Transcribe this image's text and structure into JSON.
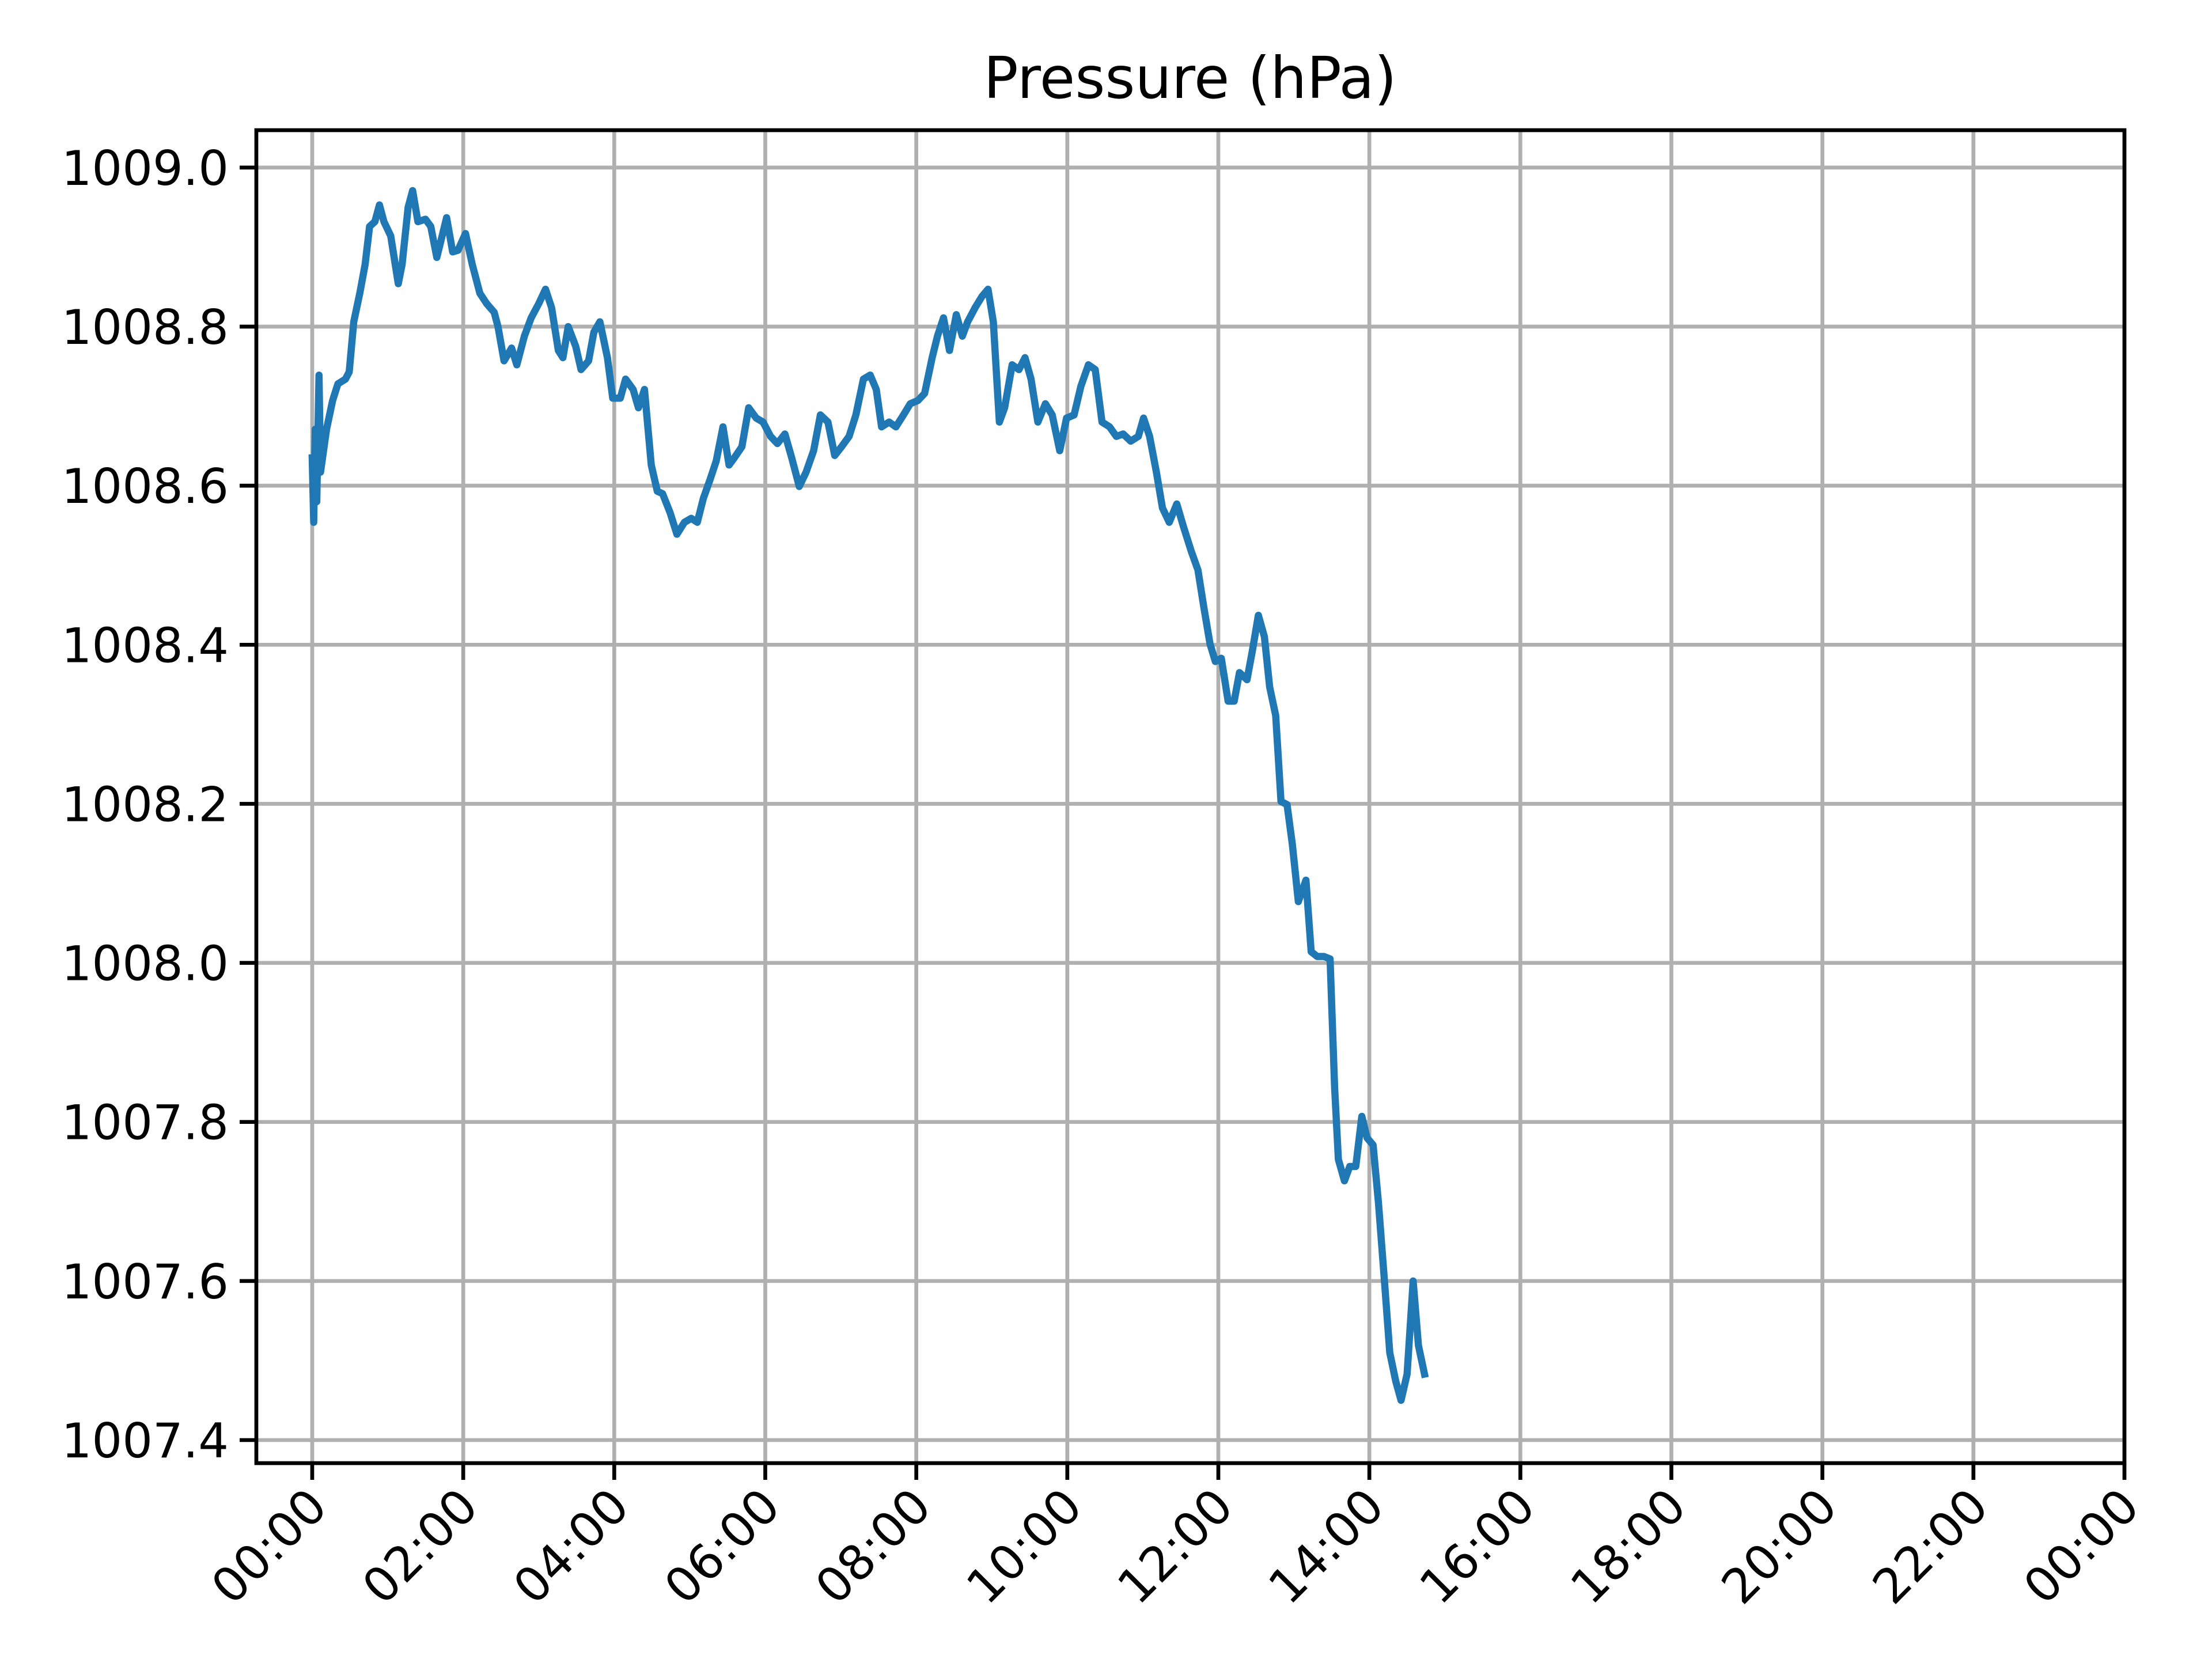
{
  "chart_data": {
    "type": "line",
    "title": "Pressure (hPa)",
    "x": [
      0,
      0.02,
      0.04,
      0.06,
      0.09,
      0.11,
      0.19,
      0.27,
      0.34,
      0.44,
      0.49,
      0.55,
      0.63,
      0.7,
      0.76,
      0.83,
      0.89,
      0.95,
      1.04,
      1.14,
      1.19,
      1.27,
      1.33,
      1.4,
      1.5,
      1.57,
      1.65,
      1.72,
      1.78,
      1.86,
      1.93,
      2.03,
      2.12,
      2.22,
      2.31,
      2.41,
      2.46,
      2.54,
      2.64,
      2.71,
      2.81,
      2.9,
      3.0,
      3.09,
      3.17,
      3.26,
      3.32,
      3.39,
      3.49,
      3.56,
      3.66,
      3.73,
      3.81,
      3.91,
      3.98,
      4.08,
      4.15,
      4.25,
      4.32,
      4.4,
      4.49,
      4.57,
      4.64,
      4.74,
      4.83,
      4.93,
      5.02,
      5.1,
      5.18,
      5.27,
      5.35,
      5.44,
      5.52,
      5.59,
      5.69,
      5.78,
      5.88,
      5.97,
      6.07,
      6.16,
      6.26,
      6.35,
      6.45,
      6.54,
      6.64,
      6.73,
      6.83,
      6.92,
      7.01,
      7.11,
      7.2,
      7.3,
      7.39,
      7.47,
      7.54,
      7.64,
      7.73,
      7.83,
      7.92,
      8.02,
      8.11,
      8.21,
      8.28,
      8.36,
      8.44,
      8.53,
      8.61,
      8.68,
      8.78,
      8.87,
      8.95,
      9.02,
      9.1,
      9.17,
      9.27,
      9.36,
      9.44,
      9.52,
      9.61,
      9.71,
      9.8,
      9.9,
      9.99,
      10.09,
      10.18,
      10.28,
      10.37,
      10.46,
      10.56,
      10.65,
      10.74,
      10.84,
      10.94,
      11.01,
      11.09,
      11.18,
      11.26,
      11.35,
      11.45,
      11.54,
      11.64,
      11.73,
      11.81,
      11.89,
      11.96,
      12.04,
      12.13,
      12.21,
      12.28,
      12.38,
      12.45,
      12.53,
      12.61,
      12.68,
      12.76,
      12.83,
      12.91,
      12.98,
      13.06,
      13.16,
      13.23,
      13.31,
      13.4,
      13.48,
      13.54,
      13.59,
      13.67,
      13.74,
      13.82,
      13.9,
      13.97,
      14.05,
      14.12,
      14.2,
      14.27,
      14.35,
      14.42,
      14.5,
      14.58,
      14.65,
      14.73
    ],
    "series": [
      {
        "name": "Pressure",
        "color": "#1f77b4",
        "values": [
          1008.635,
          1008.554,
          1008.671,
          1008.58,
          1008.739,
          1008.617,
          1008.671,
          1008.707,
          1008.728,
          1008.734,
          1008.743,
          1008.806,
          1008.842,
          1008.878,
          1008.926,
          1008.932,
          1008.953,
          1008.932,
          1008.914,
          1008.854,
          1008.878,
          1008.95,
          1008.971,
          1008.932,
          1008.935,
          1008.926,
          1008.887,
          1008.914,
          1008.937,
          1008.894,
          1008.896,
          1008.917,
          1008.878,
          1008.842,
          1008.829,
          1008.818,
          1008.8,
          1008.757,
          1008.773,
          1008.752,
          1008.788,
          1008.811,
          1008.829,
          1008.847,
          1008.824,
          1008.77,
          1008.761,
          1008.8,
          1008.775,
          1008.746,
          1008.757,
          1008.793,
          1008.806,
          1008.761,
          1008.71,
          1008.71,
          1008.734,
          1008.721,
          1008.698,
          1008.721,
          1008.626,
          1008.593,
          1008.59,
          1008.566,
          1008.539,
          1008.554,
          1008.559,
          1008.554,
          1008.584,
          1008.608,
          1008.631,
          1008.674,
          1008.626,
          1008.635,
          1008.649,
          1008.698,
          1008.685,
          1008.68,
          1008.662,
          1008.653,
          1008.665,
          1008.635,
          1008.599,
          1008.617,
          1008.644,
          1008.689,
          1008.68,
          1008.638,
          1008.649,
          1008.662,
          1008.689,
          1008.734,
          1008.739,
          1008.721,
          1008.674,
          1008.68,
          1008.674,
          1008.689,
          1008.703,
          1008.707,
          1008.716,
          1008.761,
          1008.788,
          1008.811,
          1008.77,
          1008.815,
          1008.788,
          1008.806,
          1008.824,
          1008.838,
          1008.847,
          1008.806,
          1008.68,
          1008.698,
          1008.752,
          1008.746,
          1008.761,
          1008.734,
          1008.68,
          1008.703,
          1008.689,
          1008.644,
          1008.685,
          1008.689,
          1008.725,
          1008.752,
          1008.746,
          1008.68,
          1008.674,
          1008.662,
          1008.665,
          1008.656,
          1008.662,
          1008.685,
          1008.662,
          1008.617,
          1008.572,
          1008.554,
          1008.577,
          1008.548,
          1008.518,
          1008.494,
          1008.446,
          1008.401,
          1008.379,
          1008.383,
          1008.329,
          1008.329,
          1008.365,
          1008.356,
          1008.392,
          1008.437,
          1008.41,
          1008.347,
          1008.311,
          1008.203,
          1008.199,
          1008.149,
          1008.077,
          1008.104,
          1008.014,
          1008.008,
          1008.008,
          1008.005,
          1007.843,
          1007.753,
          1007.726,
          1007.744,
          1007.744,
          1007.807,
          1007.78,
          1007.771,
          1007.699,
          1007.6,
          1007.51,
          1007.474,
          1007.45,
          1007.483,
          1007.6,
          1007.519,
          1007.483
        ]
      }
    ],
    "xlim": [
      -0.74,
      24
    ],
    "xticks": [
      {
        "value": 0,
        "label": "00:00"
      },
      {
        "value": 2,
        "label": "02:00"
      },
      {
        "value": 4,
        "label": "04:00"
      },
      {
        "value": 6,
        "label": "06:00"
      },
      {
        "value": 8,
        "label": "08:00"
      },
      {
        "value": 10,
        "label": "10:00"
      },
      {
        "value": 12,
        "label": "12:00"
      },
      {
        "value": 14,
        "label": "14:00"
      },
      {
        "value": 16,
        "label": "16:00"
      },
      {
        "value": 18,
        "label": "18:00"
      },
      {
        "value": 20,
        "label": "20:00"
      },
      {
        "value": 22,
        "label": "22:00"
      },
      {
        "value": 24,
        "label": "00:00"
      }
    ],
    "ylim": [
      1007.371,
      1009.047
    ],
    "yticks": [
      {
        "value": 1007.4,
        "label": "1007.4"
      },
      {
        "value": 1007.6,
        "label": "1007.6"
      },
      1007.8,
      {
        "value": 1008.0,
        "label": "1008.0"
      },
      1008.2,
      1008.4,
      1008.6,
      1008.8,
      {
        "value": 1009.0,
        "label": "1009.0"
      }
    ],
    "grid": true
  }
}
